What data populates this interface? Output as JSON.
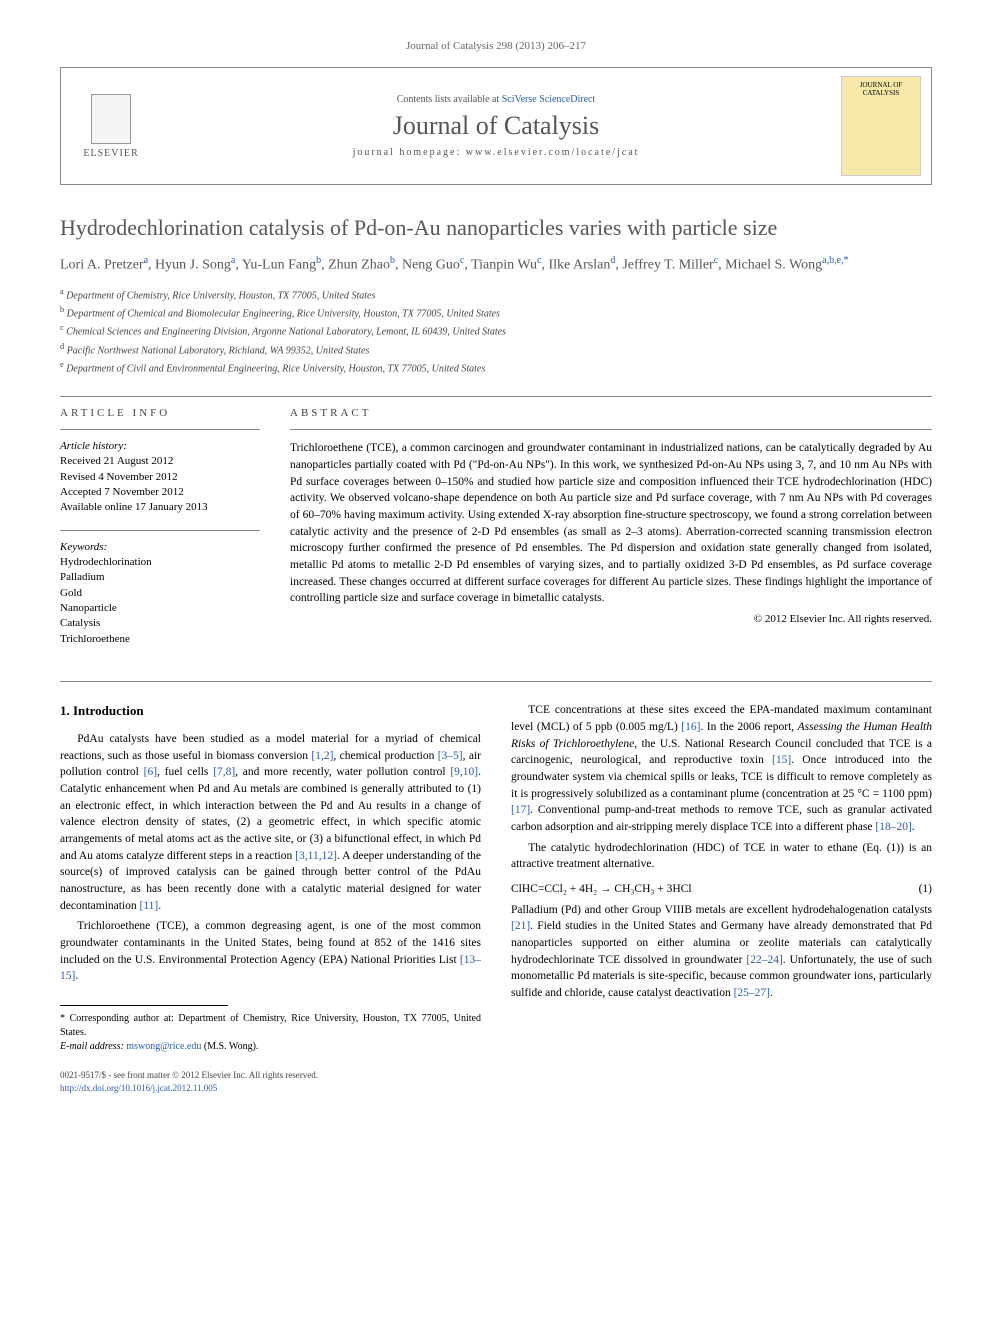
{
  "journal_ref": "Journal of Catalysis 298 (2013) 206–217",
  "header": {
    "contents_prefix": "Contents lists available at ",
    "contents_link": "SciVerse ScienceDirect",
    "journal_name": "Journal of Catalysis",
    "homepage_prefix": "journal homepage: ",
    "homepage_url": "www.elsevier.com/locate/jcat",
    "elsevier": "ELSEVIER",
    "cover_label": "JOURNAL OF CATALYSIS"
  },
  "title": "Hydrodechlorination catalysis of Pd-on-Au nanoparticles varies with particle size",
  "authors_html": "Lori A. Pretzer<sup>a</sup>, Hyun J. Song<sup>a</sup>, Yu-Lun Fang<sup>b</sup>, Zhun Zhao<sup>b</sup>, Neng Guo<sup>c</sup>, Tianpin Wu<sup>c</sup>, Ilke Arslan<sup>d</sup>, Jeffrey T. Miller<sup>c</sup>, Michael S. Wong<sup>a,b,e,*</sup>",
  "affiliations": [
    {
      "sup": "a",
      "text": "Department of Chemistry, Rice University, Houston, TX 77005, United States"
    },
    {
      "sup": "b",
      "text": "Department of Chemical and Biomolecular Engineering, Rice University, Houston, TX 77005, United States"
    },
    {
      "sup": "c",
      "text": "Chemical Sciences and Engineering Division, Argonne National Laboratory, Lemont, IL 60439, United States"
    },
    {
      "sup": "d",
      "text": "Pacific Northwest National Laboratory, Richland, WA 99352, United States"
    },
    {
      "sup": "e",
      "text": "Department of Civil and Environmental Engineering, Rice University, Houston, TX 77005, United States"
    }
  ],
  "article_info": {
    "heading": "ARTICLE INFO",
    "history_label": "Article history:",
    "history": [
      "Received 21 August 2012",
      "Revised 4 November 2012",
      "Accepted 7 November 2012",
      "Available online 17 January 2013"
    ],
    "keywords_label": "Keywords:",
    "keywords": [
      "Hydrodechlorination",
      "Palladium",
      "Gold",
      "Nanoparticle",
      "Catalysis",
      "Trichloroethene"
    ]
  },
  "abstract": {
    "heading": "ABSTRACT",
    "text": "Trichloroethene (TCE), a common carcinogen and groundwater contaminant in industrialized nations, can be catalytically degraded by Au nanoparticles partially coated with Pd (\"Pd-on-Au NPs\"). In this work, we synthesized Pd-on-Au NPs using 3, 7, and 10 nm Au NPs with Pd surface coverages between 0–150% and studied how particle size and composition influenced their TCE hydrodechlorination (HDC) activity. We observed volcano-shape dependence on both Au particle size and Pd surface coverage, with 7 nm Au NPs with Pd coverages of 60–70% having maximum activity. Using extended X-ray absorption fine-structure spectroscopy, we found a strong correlation between catalytic activity and the presence of 2-D Pd ensembles (as small as 2–3 atoms). Aberration-corrected scanning transmission electron microscopy further confirmed the presence of Pd ensembles. The Pd dispersion and oxidation state generally changed from isolated, metallic Pd atoms to metallic 2-D Pd ensembles of varying sizes, and to partially oxidized 3-D Pd ensembles, as Pd surface coverage increased. These changes occurred at different surface coverages for different Au particle sizes. These findings highlight the importance of controlling particle size and surface coverage in bimetallic catalysts.",
    "copyright": "© 2012 Elsevier Inc. All rights reserved."
  },
  "section1": {
    "heading": "1. Introduction",
    "p1": "PdAu catalysts have been studied as a model material for a myriad of chemical reactions, such as those useful in biomass conversion [1,2], chemical production [3–5], air pollution control [6], fuel cells [7,8], and more recently, water pollution control [9,10]. Catalytic enhancement when Pd and Au metals are combined is generally attributed to (1) an electronic effect, in which interaction between the Pd and Au results in a change of valence electron density of states, (2) a geometric effect, in which specific atomic arrangements of metal atoms act as the active site, or (3) a bifunctional effect, in which Pd and Au atoms catalyze different steps in a reaction [3,11,12]. A deeper understanding of the source(s) of improved catalysis can be gained through better control of the PdAu nanostructure, as has been recently done with a catalytic material designed for water decontamination [11].",
    "p2": "Trichloroethene (TCE), a common degreasing agent, is one of the most common groundwater contaminants in the United States, being found at 852 of the 1416 sites included on the U.S. Environmental Protection Agency (EPA) National Priorities List [13–15].",
    "p3_a": "TCE concentrations at these sites exceed the EPA-mandated maximum contaminant level (MCL) of 5 ppb (0.005 mg/L) [16]. In the 2006 report, ",
    "p3_italic": "Assessing the Human Health Risks of Trichloroethylene",
    "p3_b": ", the U.S. National Research Council concluded that TCE is a carcinogenic, neurological, and reproductive toxin [15]. Once introduced into the groundwater system via chemical spills or leaks, TCE is difficult to remove completely as it is progressively solubilized as a contaminant plume (concentration at 25 °C = 1100 ppm) [17]. Conventional pump-and-treat methods to remove TCE, such as granular activated carbon adsorption and air-stripping merely displace TCE into a different phase [18–20].",
    "p4": "The catalytic hydrodechlorination (HDC) of TCE in water to ethane (Eq. (1)) is an attractive treatment alternative.",
    "eq_lhs": "ClHC=CCl₂ + 4H₂ → CH₃CH₃ + 3HCl",
    "eq_num": "(1)",
    "p5": "Palladium (Pd) and other Group VIIIB metals are excellent hydrodehalogenation catalysts [21]. Field studies in the United States and Germany have already demonstrated that Pd nanoparticles supported on either alumina or zeolite materials can catalytically hydrodechlorinate TCE dissolved in groundwater [22–24]. Unfortunately, the use of such monometallic Pd materials is site-specific, because common groundwater ions, particularly sulfide and chloride, cause catalyst deactivation [25–27]."
  },
  "footnotes": {
    "corr": "* Corresponding author at: Department of Chemistry, Rice University, Houston, TX 77005, United States.",
    "email_label": "E-mail address: ",
    "email": "mswong@rice.edu",
    "email_name": " (M.S. Wong)."
  },
  "bottom": {
    "line1": "0021-9517/$ - see front matter © 2012 Elsevier Inc. All rights reserved.",
    "doi": "http://dx.doi.org/10.1016/j.jcat.2012.11.005"
  },
  "colors": {
    "link": "#2a5db0",
    "heading_gray": "#56575a",
    "cover_bg": "#f5e8a8"
  }
}
